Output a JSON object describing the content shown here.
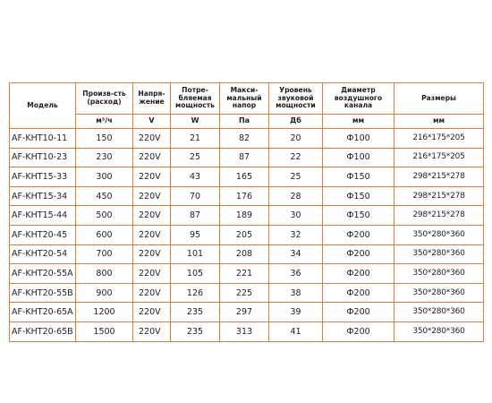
{
  "headers": {
    "model": "Модель",
    "flow": "Произв-сть (расход)",
    "voltage": "Напря-жение",
    "power": "Потре-бляемая мощность",
    "pressure": "Макси-мальный напор",
    "noise": "Уровень звуковой мощности",
    "duct": "Диаметр воздушного канала",
    "size": "Размеры"
  },
  "units": {
    "flow": "м³/ч",
    "voltage": "V",
    "power": "W",
    "pressure": "Па",
    "noise": "Дб",
    "duct": "мм",
    "size": "мм"
  },
  "rows": [
    {
      "model": "AF-KHT10-11",
      "flow": "150",
      "voltage": "220V",
      "power": "21",
      "pressure": "82",
      "noise": "20",
      "duct": "Ф100",
      "size": "216*175*205"
    },
    {
      "model": "AF-KHT10-23",
      "flow": "230",
      "voltage": "220V",
      "power": "25",
      "pressure": "87",
      "noise": "22",
      "duct": "Ф100",
      "size": "216*175*205"
    },
    {
      "model": "AF-KHT15-33",
      "flow": "300",
      "voltage": "220V",
      "power": "43",
      "pressure": "165",
      "noise": "25",
      "duct": "Ф150",
      "size": "298*215*278"
    },
    {
      "model": "AF-KHT15-34",
      "flow": "450",
      "voltage": "220V",
      "power": "70",
      "pressure": "176",
      "noise": "28",
      "duct": "Ф150",
      "size": "298*215*278"
    },
    {
      "model": "AF-KHT15-44",
      "flow": "500",
      "voltage": "220V",
      "power": "87",
      "pressure": "189",
      "noise": "30",
      "duct": "Ф150",
      "size": "298*215*278"
    },
    {
      "model": "AF-KHT20-45",
      "flow": "600",
      "voltage": "220V",
      "power": "95",
      "pressure": "205",
      "noise": "32",
      "duct": "Ф200",
      "size": "350*280*360"
    },
    {
      "model": "AF-KHT20-54",
      "flow": "700",
      "voltage": "220V",
      "power": "101",
      "pressure": "208",
      "noise": "34",
      "duct": "Ф200",
      "size": "350*280*360"
    },
    {
      "model": "AF-KHT20-55A",
      "flow": "800",
      "voltage": "220V",
      "power": "105",
      "pressure": "221",
      "noise": "36",
      "duct": "Ф200",
      "size": "350*280*360"
    },
    {
      "model": "AF-KHT20-55B",
      "flow": "900",
      "voltage": "220V",
      "power": "126",
      "pressure": "225",
      "noise": "38",
      "duct": "Ф200",
      "size": "350*280*360"
    },
    {
      "model": "AF-KHT20-65A",
      "flow": "1200",
      "voltage": "220V",
      "power": "235",
      "pressure": "297",
      "noise": "39",
      "duct": "Ф200",
      "size": "350*280*360"
    },
    {
      "model": "AF-KHT20-65B",
      "flow": "1500",
      "voltage": "220V",
      "power": "235",
      "pressure": "313",
      "noise": "41",
      "duct": "Ф200",
      "size": "350*280*360"
    }
  ],
  "colors": {
    "border": "#e07a3b"
  }
}
